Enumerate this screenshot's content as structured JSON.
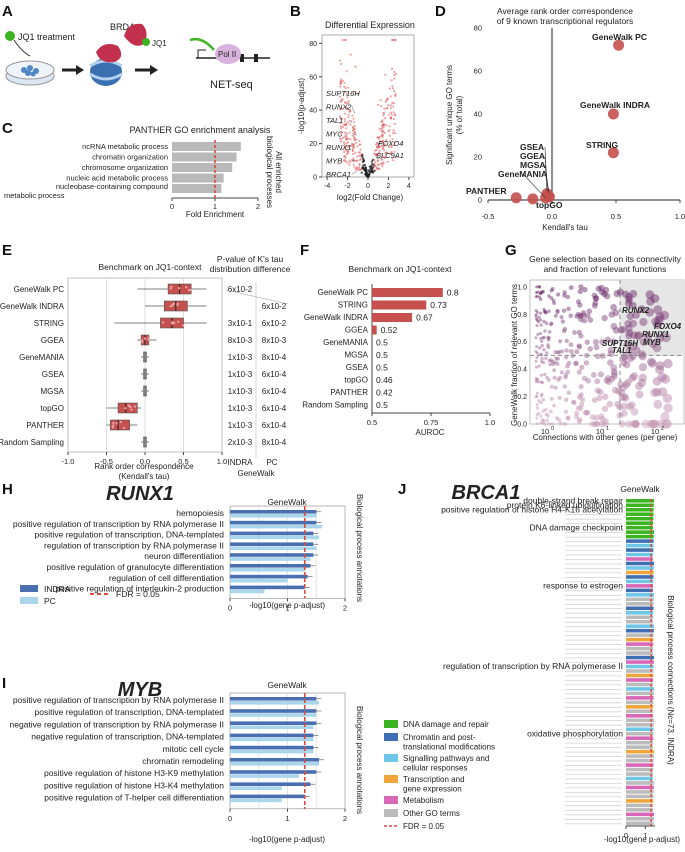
{
  "panels": {
    "A": {
      "letter": "A",
      "jq1_treatment": "JQ1 treatment",
      "brd4": "BRD4",
      "jq1": "JQ1",
      "pol2": "Pol II",
      "netseq": "NET-seq"
    },
    "B": {
      "letter": "B",
      "chart_data": {
        "type": "scatter",
        "title": "Differential Expression",
        "xlabel": "log2(Fold Change)",
        "ylabel": "-log10(p-adjust)",
        "xticks": [
          "-4",
          "-2",
          "0",
          "2",
          "4"
        ],
        "yticks": [
          "0",
          "20",
          "40",
          "60",
          "80"
        ],
        "xlim": [
          -4.5,
          4.5
        ],
        "ylim": [
          0,
          85
        ],
        "labeled_genes": [
          {
            "gene": "SUPT16H",
            "x": -1.6,
            "y": 50
          },
          {
            "gene": "RUNX2",
            "x": -1.3,
            "y": 38
          },
          {
            "gene": "TAL1",
            "x": -1.7,
            "y": 32
          },
          {
            "gene": "MYC",
            "x": -1.1,
            "y": 25
          },
          {
            "gene": "RUNX1",
            "x": -1.4,
            "y": 18
          },
          {
            "gene": "MYB",
            "x": -1.2,
            "y": 10
          },
          {
            "gene": "BRCA1",
            "x": -1.0,
            "y": 4
          },
          {
            "gene": "FOXO4",
            "x": 1.4,
            "y": 20
          },
          {
            "gene": "SLC9A1",
            "x": 1.5,
            "y": 10
          }
        ]
      }
    },
    "C": {
      "letter": "C",
      "chart_data": {
        "type": "bar",
        "title": "PANTHER GO enrichment analysis",
        "categories": [
          "ncRNA metabolic process",
          "chromatin organization",
          "chromosome organization",
          "nucleic acid metabolic process",
          "nucleobase-containing compound metabolic process"
        ],
        "values": [
          1.6,
          1.5,
          1.4,
          1.2,
          1.15
        ],
        "xlabel": "Fold Enrichment",
        "xticks": [
          "0",
          "1",
          "2"
        ],
        "xlim": [
          0,
          2
        ],
        "ref_line": 1,
        "side_label": [
          "All enriched",
          "biological processes"
        ]
      }
    },
    "D": {
      "letter": "D",
      "chart_data": {
        "type": "scatter",
        "title": [
          "Average rank order correspondence",
          "of 9 known transcriptional regulators"
        ],
        "xlabel": "Kendall's tau",
        "ylabel": [
          "Significant unique GO terms",
          "(% of total)"
        ],
        "xticks": [
          "-0.5",
          "0.0",
          "0.5",
          "1.0"
        ],
        "yticks": [
          "0",
          "20",
          "40",
          "60",
          "80"
        ],
        "xlim": [
          -0.5,
          1.0
        ],
        "ylim": [
          0,
          80
        ],
        "points": [
          {
            "name": "GeneWalk PC",
            "x": 0.52,
            "y": 72
          },
          {
            "name": "GeneWalk INDRA",
            "x": 0.48,
            "y": 40
          },
          {
            "name": "STRING",
            "x": 0.48,
            "y": 22
          },
          {
            "name": "GSEA",
            "x": -0.04,
            "y": 3
          },
          {
            "name": "GGEA",
            "x": -0.03,
            "y": 2
          },
          {
            "name": "MGSA",
            "x": -0.02,
            "y": 1.5
          },
          {
            "name": "GeneMANIA",
            "x": -0.05,
            "y": 1
          },
          {
            "name": "PANTHER",
            "x": -0.28,
            "y": 1
          },
          {
            "name": "topGO",
            "x": -0.15,
            "y": 0.5
          }
        ]
      }
    },
    "E": {
      "letter": "E",
      "chart_data": {
        "type": "box",
        "title": "Benchmark on JQ1-context",
        "xlabel": [
          "Rank order correspondence",
          "(Kendall's tau)"
        ],
        "xticks": [
          "-1.0",
          "-0.5",
          "0.0",
          "0.5",
          "1.0"
        ],
        "xlim": [
          -1.0,
          1.0
        ],
        "categories": [
          "GeneWalk PC",
          "GeneWalk INDRA",
          "STRING",
          "GGEA",
          "GeneMANIA",
          "GSEA",
          "MGSA",
          "topGO",
          "PANTHER",
          "Random Sampling"
        ],
        "boxes": [
          {
            "min": -0.1,
            "q1": 0.3,
            "median": 0.45,
            "q3": 0.6,
            "max": 0.8
          },
          {
            "min": 0.0,
            "q1": 0.25,
            "median": 0.4,
            "q3": 0.55,
            "max": 0.8
          },
          {
            "min": -0.4,
            "q1": 0.2,
            "median": 0.35,
            "q3": 0.5,
            "max": 0.8
          },
          {
            "min": -0.1,
            "q1": -0.05,
            "median": 0.0,
            "q3": 0.05,
            "max": 0.15
          },
          {
            "min": -0.05,
            "q1": -0.02,
            "median": 0.0,
            "q3": 0.02,
            "max": 0.05
          },
          {
            "min": -0.05,
            "q1": -0.02,
            "median": 0.0,
            "q3": 0.02,
            "max": 0.05
          },
          {
            "min": -0.05,
            "q1": -0.02,
            "median": 0.0,
            "q3": 0.02,
            "max": 0.05
          },
          {
            "min": -0.5,
            "q1": -0.35,
            "median": -0.25,
            "q3": -0.1,
            "max": -0.05
          },
          {
            "min": -0.5,
            "q1": -0.45,
            "median": -0.35,
            "q3": -0.2,
            "max": -0.1
          },
          {
            "min": -0.05,
            "q1": -0.02,
            "median": 0.0,
            "q3": 0.02,
            "max": 0.05
          }
        ],
        "pvalue_title": [
          "P-value of K's tau",
          "distribution difference"
        ],
        "pvalues_indra": [
          "6x10-2",
          "",
          "3x10-1",
          "8x10-3",
          "1x10-3",
          "1x10-3",
          "1x10-3",
          "1x10-3",
          "1x10-3",
          "2x10-3"
        ],
        "pvalues_pc": [
          "",
          "6x10-2",
          "6x10-2",
          "8x10-3",
          "8x10-4",
          "6x10-4",
          "6x10-4",
          "6x10-4",
          "6x10-4",
          "8x10-4"
        ],
        "col_indra": "INDRA",
        "col_pc": "PC",
        "col_group": "GeneWalk"
      }
    },
    "F": {
      "letter": "F",
      "chart_data": {
        "type": "bar",
        "title": "Benchmark on JQ1-context",
        "categories": [
          "GeneWalk PC",
          "STRING",
          "GeneWalk INDRA",
          "GGEA",
          "GeneMANIA",
          "MGSA",
          "GSEA",
          "topGO",
          "PANTHER",
          "Random Sampling"
        ],
        "values": [
          0.8,
          0.73,
          0.67,
          0.52,
          0.5,
          0.5,
          0.5,
          0.46,
          0.42,
          0.5
        ],
        "value_labels": [
          "0.8",
          "0.73",
          "0.67",
          "0.52",
          "0.5",
          "0.5",
          "0.5",
          "0.46",
          "0.42",
          "0.5"
        ],
        "xlabel": "AUROC",
        "xticks": [
          "0.5",
          "0.75",
          "1.0"
        ],
        "xlim": [
          0.5,
          1.0
        ]
      }
    },
    "G": {
      "letter": "G",
      "chart_data": {
        "type": "scatter",
        "title": [
          "Gene selection based on its connectivity",
          "and fraction of relevant functions"
        ],
        "xlabel": "Connections with other genes (per gene)",
        "ylabel": [
          "GeneWalk fraction of relevant GO terms"
        ],
        "xticks": [
          "10^0",
          "10^1",
          "10^2"
        ],
        "yticks": [
          "0.0",
          "0.2",
          "0.4",
          "0.6",
          "0.8",
          "1.0"
        ],
        "ylim": [
          0,
          1.05
        ],
        "labeled_genes": [
          "RUNX2",
          "FOXO4",
          "RUNX1",
          "MYB",
          "SUPT16H",
          "TAL1"
        ]
      }
    },
    "H": {
      "letter": "H",
      "gene": "RUNX1",
      "group_label": "GeneWalk",
      "side_label": "Biological process annotations",
      "chart_data": {
        "type": "bar",
        "categories": [
          "hemopoiesis",
          "positive regulation of transcription by RNA polymerase II",
          "positive regulation of transcription, DNA-templated",
          "regulation of transcription by RNA polymerase II",
          "neuron differentiation",
          "positive regulation of granulocyte differentiation",
          "regulation of cell differentiation",
          "positive regulation of interleukin-2 production"
        ],
        "series": [
          {
            "name": "INDRA",
            "values": [
              1.5,
              1.5,
              1.45,
              1.45,
              1.45,
              1.4,
              1.35,
              1.3
            ]
          },
          {
            "name": "PC",
            "values": [
              1.5,
              1.6,
              1.55,
              1.5,
              1.4,
              1.3,
              1.0,
              0.6
            ]
          }
        ],
        "xlabel": "-log10(gene p-adjust)",
        "xticks": [
          "0",
          "1",
          "2"
        ],
        "xlim": [
          0,
          2
        ],
        "fdr_line": 1.3,
        "legend": {
          "indra": "INDRA",
          "pc": "PC",
          "fdr": "FDR = 0.05"
        }
      }
    },
    "I": {
      "letter": "I",
      "gene": "MYB",
      "group_label": "GeneWalk",
      "side_label": "Biological process annotations",
      "chart_data": {
        "type": "bar",
        "categories": [
          "positive regulation of transcription by RNA polymerase II",
          "positive regulation of transcription, DNA-templated",
          "negative regulation of transcription by RNA polymerase II",
          "negative regulation of transcription, DNA-templated",
          "mitotic cell cycle",
          "chromatin remodeling",
          "positive regulation of histone H3-K9 methylation",
          "positive regulation of histone H3-K4 methylation",
          "positive regulation of T-helper cell differentiation"
        ],
        "series": [
          {
            "name": "INDRA",
            "values": [
              1.5,
              1.5,
              1.5,
              1.45,
              1.45,
              1.55,
              1.5,
              1.4,
              1.3
            ]
          },
          {
            "name": "PC",
            "values": [
              1.55,
              1.5,
              1.45,
              1.45,
              1.45,
              1.55,
              1.2,
              0.9,
              0.9
            ]
          }
        ],
        "xlabel": "-log10(gene p-adjust)",
        "xticks": [
          "0",
          "1",
          "2"
        ],
        "xlim": [
          0,
          2
        ],
        "fdr_line": 1.3
      }
    },
    "J": {
      "letter": "J",
      "gene": "BRCA1",
      "group_label": "GeneWalk",
      "side_label": "Biological process connections (Nc=73, INDRA)",
      "highlighted_terms": [
        "double-strand break repair",
        "protein K6-linked ubiquitination",
        "positive regulation of histone H4-K16 acetylation",
        "DNA damage checkpoint",
        "response to estrogen",
        "regulation of transcription by RNA polymerase II",
        "oxidative phosphorylation"
      ],
      "xlabel": "-log10(gene p-adjust)",
      "xticks": [
        "0",
        "1"
      ],
      "fdr_line": 1.3,
      "legend": [
        {
          "label": "DNA damage and repair",
          "color": "#3cb321"
        },
        {
          "label": "Chromatin and post-translational modifications",
          "color": "#3f6eb3"
        },
        {
          "label": "Signalling pathways and cellular responses",
          "color": "#6ec6e8"
        },
        {
          "label": "Transcription and gene expression",
          "color": "#f0a63a"
        },
        {
          "label": "Metabolism",
          "color": "#d967b7"
        },
        {
          "label": "Other GO terms",
          "color": "#bbbbbb"
        }
      ],
      "legend_fdr": "FDR = 0.05"
    }
  },
  "colors": {
    "red": "#c0392b",
    "box_red": "#c5504e",
    "indra": "#4a6fb0",
    "pc": "#a9d6ea",
    "fdr": "#d94a3d",
    "gray_bar": "#b9b9b9"
  }
}
